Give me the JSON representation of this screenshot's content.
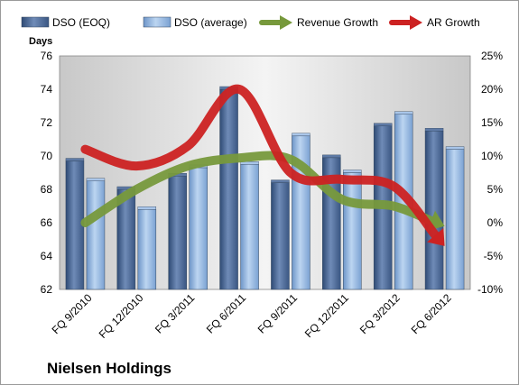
{
  "chart_data": {
    "type": "bar",
    "title": "",
    "company": "Nielsen Holdings",
    "ylabel_left": "Days",
    "categories": [
      "FQ 9/2010",
      "FQ 12/2010",
      "FQ 3/2011",
      "FQ 6/2011",
      "FQ 9/2011",
      "FQ 12/2011",
      "FQ 3/2012",
      "FQ 6/2012"
    ],
    "ylim_left": [
      62,
      76
    ],
    "yticks_left": [
      "62",
      "64",
      "66",
      "68",
      "70",
      "72",
      "74",
      "76"
    ],
    "ylim_right": [
      -10,
      25
    ],
    "yticks_right": [
      "-10%",
      "-5%",
      "0%",
      "5%",
      "10%",
      "15%",
      "20%",
      "25%"
    ],
    "bar_series": [
      {
        "name": "DSO (EOQ)",
        "axis": "left",
        "color": "#4f6a94",
        "values": [
          69.7,
          68.0,
          68.8,
          74.0,
          68.4,
          69.9,
          71.8,
          71.5
        ]
      },
      {
        "name": "DSO (average)",
        "axis": "left",
        "color": "#8fb2dc",
        "values": [
          68.5,
          66.8,
          69.3,
          69.5,
          71.2,
          69.0,
          72.5,
          70.4
        ]
      }
    ],
    "line_series": [
      {
        "name": "Revenue Growth",
        "axis": "right",
        "color": "#77993c",
        "values": [
          0,
          5,
          8.5,
          9.7,
          9.5,
          3.5,
          2.5,
          -0.5
        ]
      },
      {
        "name": "AR Growth",
        "axis": "right",
        "color": "#cc2222",
        "values": [
          11,
          8.5,
          11.5,
          20,
          7.5,
          6.5,
          5.5,
          -3.5
        ]
      }
    ],
    "legend_position": "top",
    "grid": false
  }
}
